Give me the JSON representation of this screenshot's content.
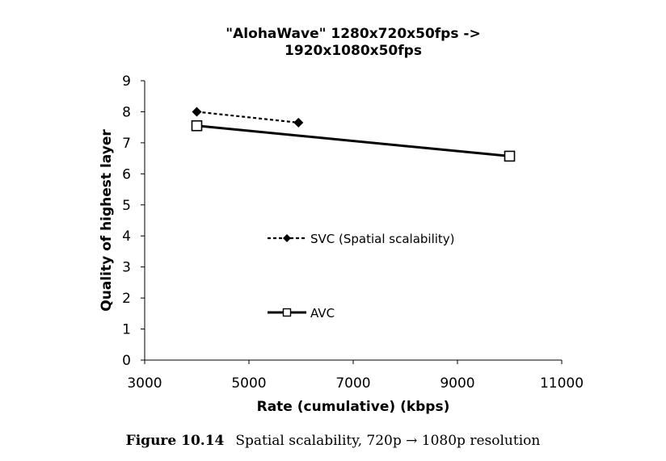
{
  "chart_data": {
    "type": "line",
    "title_lines": [
      "\"AlohaWave\" 1280x720x50fps ->",
      "1920x1080x50fps"
    ],
    "xlabel": "Rate (cumulative) (kbps)",
    "ylabel": "Quality of highest layer",
    "xlim": [
      3000,
      11000
    ],
    "ylim": [
      0,
      9
    ],
    "xticks": [
      3000,
      5000,
      7000,
      9000,
      11000
    ],
    "yticks": [
      0,
      1,
      2,
      3,
      4,
      5,
      6,
      7,
      8,
      9
    ],
    "grid": false,
    "legend_placement": "inside plot, left-center",
    "series": [
      {
        "name": "SVC (Spatial scalability)",
        "marker": "filled-diamond",
        "line": "dashed",
        "color": "#000000",
        "points": [
          {
            "x": 4000,
            "y": 8.0
          },
          {
            "x": 5950,
            "y": 7.65
          }
        ]
      },
      {
        "name": "AVC",
        "marker": "open-square",
        "line": "solid",
        "color": "#000000",
        "points": [
          {
            "x": 4000,
            "y": 7.55
          },
          {
            "x": 10000,
            "y": 6.57
          }
        ]
      }
    ]
  },
  "caption": {
    "figure_label": "Figure 10.14",
    "text": "Spatial scalability, 720p → 1080p resolution"
  }
}
